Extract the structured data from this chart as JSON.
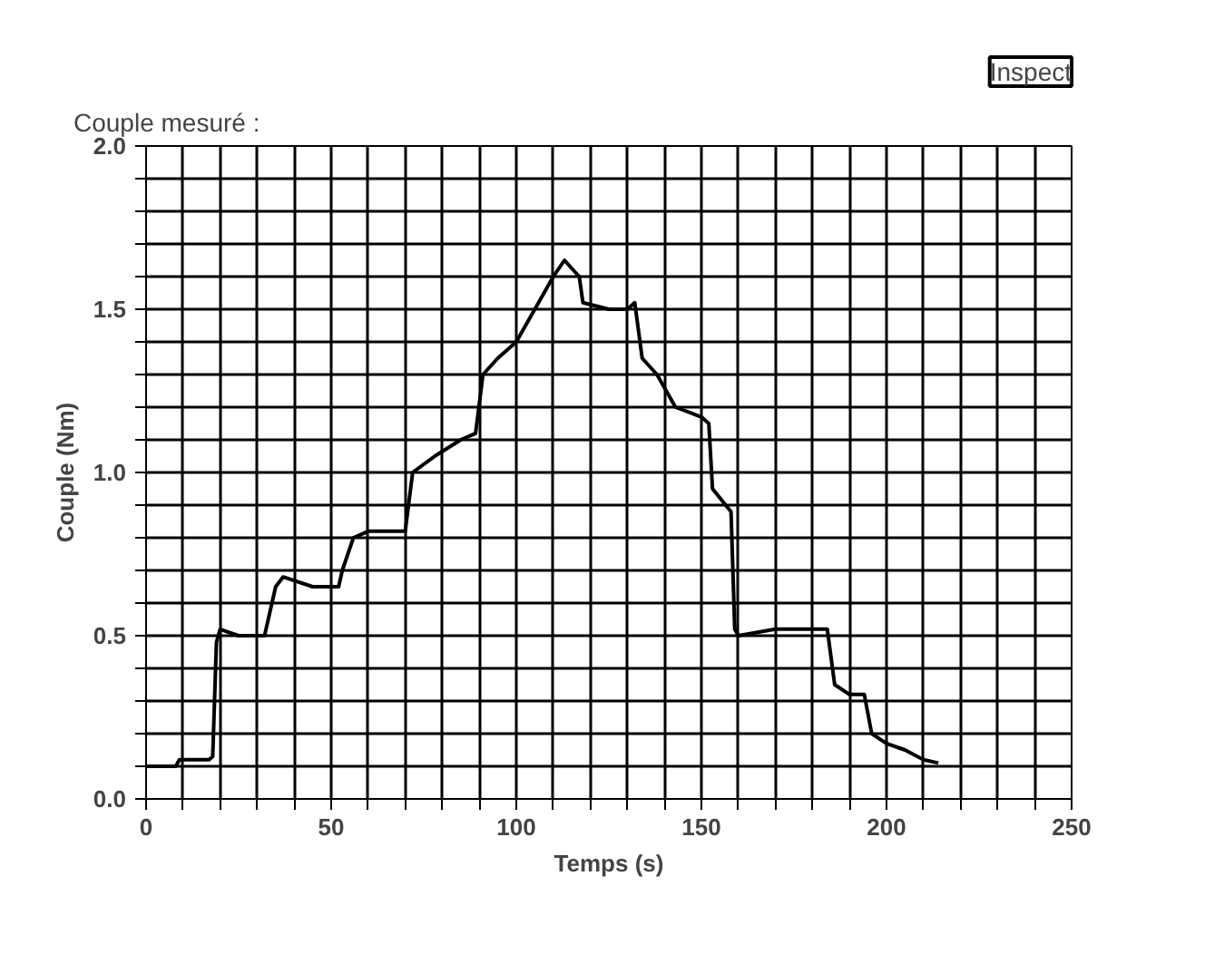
{
  "chart_data": {
    "type": "line",
    "title": "Couple mesuré :",
    "annotations": [
      "Inspect"
    ],
    "xlabel": "Temps (s)",
    "ylabel": "Couple (Nm)",
    "x": [
      0,
      8,
      9,
      17,
      18,
      19,
      20,
      25,
      32,
      33,
      35,
      37,
      45,
      52,
      53,
      56,
      60,
      70,
      72,
      78,
      85,
      89,
      91,
      95,
      100,
      105,
      110,
      113,
      117,
      118,
      125,
      130,
      132,
      134,
      138,
      143,
      150,
      152,
      153,
      158,
      159,
      160,
      170,
      180,
      184,
      186,
      190,
      194,
      196,
      200,
      205,
      210,
      214
    ],
    "series": [
      {
        "color": "#000000",
        "values": [
          0.1,
          0.1,
          0.12,
          0.12,
          0.13,
          0.48,
          0.52,
          0.5,
          0.5,
          0.55,
          0.65,
          0.68,
          0.65,
          0.65,
          0.7,
          0.8,
          0.82,
          0.82,
          1.0,
          1.05,
          1.1,
          1.12,
          1.3,
          1.35,
          1.4,
          1.5,
          1.6,
          1.65,
          1.6,
          1.52,
          1.5,
          1.5,
          1.52,
          1.35,
          1.3,
          1.2,
          1.17,
          1.15,
          0.95,
          0.88,
          0.52,
          0.5,
          0.52,
          0.52,
          0.52,
          0.35,
          0.32,
          0.32,
          0.2,
          0.17,
          0.15,
          0.12,
          0.11
        ]
      }
    ],
    "xlim": [
      0,
      250
    ],
    "ylim": [
      0,
      2
    ],
    "xticks": [
      0,
      {
        "value": 10,
        "label": null
      },
      {
        "value": 20,
        "label": null
      },
      {
        "value": 30,
        "label": null
      },
      {
        "value": 40,
        "label": null
      },
      50,
      {
        "value": 60,
        "label": null
      },
      {
        "value": 70,
        "label": null
      },
      {
        "value": 80,
        "label": null
      },
      {
        "value": 90,
        "label": null
      },
      100,
      {
        "value": 110,
        "label": null
      },
      {
        "value": 120,
        "label": null
      },
      {
        "value": 130,
        "label": null
      },
      {
        "value": 140,
        "label": null
      },
      150,
      {
        "value": 160,
        "label": null
      },
      {
        "value": 170,
        "label": null
      },
      {
        "value": 180,
        "label": null
      },
      {
        "value": 190,
        "label": null
      },
      200,
      {
        "value": 210,
        "label": null
      },
      {
        "value": 220,
        "label": null
      },
      {
        "value": 230,
        "label": null
      },
      {
        "value": 240,
        "label": null
      },
      250
    ],
    "yticks": [
      {
        "value": 0,
        "label": "0.0"
      },
      {
        "value": 0.1,
        "label": null
      },
      {
        "value": 0.2,
        "label": null
      },
      {
        "value": 0.3,
        "label": null
      },
      {
        "value": 0.4,
        "label": null
      },
      {
        "value": 0.5,
        "label": "0.5"
      },
      {
        "value": 0.6,
        "label": null
      },
      {
        "value": 0.7,
        "label": null
      },
      {
        "value": 0.8,
        "label": null
      },
      {
        "value": 0.9,
        "label": null
      },
      {
        "value": 1,
        "label": "1.0"
      },
      {
        "value": 1.1,
        "label": null
      },
      {
        "value": 1.2,
        "label": null
      },
      {
        "value": 1.3,
        "label": null
      },
      {
        "value": 1.4,
        "label": null
      },
      {
        "value": 1.5,
        "label": "1.5"
      },
      {
        "value": 1.6,
        "label": null
      },
      {
        "value": 1.7,
        "label": null
      },
      {
        "value": 1.8,
        "label": null
      },
      {
        "value": 1.9,
        "label": null
      },
      {
        "value": 2,
        "label": "2.0"
      }
    ],
    "grid": true,
    "marker": "none",
    "line_style": "solid"
  }
}
